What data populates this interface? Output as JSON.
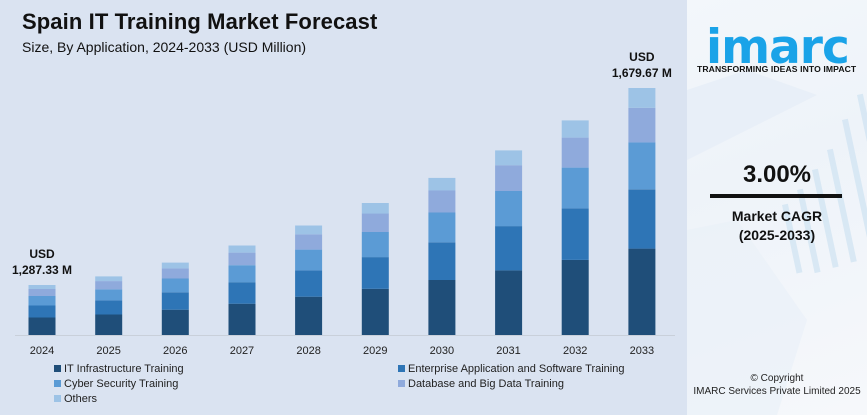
{
  "header": {
    "title": "Spain IT Training Market Forecast",
    "subtitle": "Size, By Application, 2024-2033 (USD Million)"
  },
  "side_panel": {
    "brand": "imarc",
    "tagline": "TRANSFORMING IDEAS INTO IMPACT",
    "cagr_value": "3.00%",
    "cagr_label": "Market CAGR",
    "cagr_period": "(2025-2033)",
    "copyright_line1": "© Copyright",
    "copyright_line2": "IMARC Services Private Limited 2025",
    "brand_color": "#1aa3e8"
  },
  "chart_data": {
    "type": "bar",
    "stacked": true,
    "title": "Spain IT Training Market Forecast",
    "subtitle": "Size, By Application, 2024-2033 (USD Million)",
    "xlabel": "",
    "ylabel": "",
    "grid": false,
    "legend_position": "bottom",
    "categories": [
      "2024",
      "2025",
      "2026",
      "2027",
      "2028",
      "2029",
      "2030",
      "2031",
      "2032",
      "2033"
    ],
    "totals": [
      1287.33,
      1325.95,
      1365.73,
      1406.7,
      1448.9,
      1492.37,
      1537.14,
      1583.25,
      1630.75,
      1679.67
    ],
    "annotations": [
      {
        "category": "2024",
        "line1": "USD",
        "line2": "1,287.33 M"
      },
      {
        "category": "2033",
        "line1": "USD",
        "line2": "1,679.67 M"
      }
    ],
    "series": [
      {
        "name": "IT Infrastructure Training",
        "color": "#1f4e79",
        "share": 0.35
      },
      {
        "name": "Enterprise Application and Software Training",
        "color": "#2e75b6",
        "share": 0.24
      },
      {
        "name": "Cyber Security Training",
        "color": "#5b9bd5",
        "share": 0.19
      },
      {
        "name": "Database and Big Data Training",
        "color": "#8faadc",
        "share": 0.14
      },
      {
        "name": "Others",
        "color": "#9dc3e6",
        "share": 0.08
      }
    ]
  }
}
